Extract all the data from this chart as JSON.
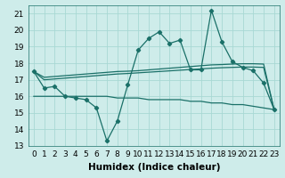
{
  "xlabel": "Humidex (Indice chaleur)",
  "bg_color": "#ceecea",
  "grid_color": "#a8d8d4",
  "line_color": "#1a7068",
  "xlim": [
    -0.5,
    23.5
  ],
  "ylim": [
    13,
    21.5
  ],
  "yticks": [
    13,
    14,
    15,
    16,
    17,
    18,
    19,
    20,
    21
  ],
  "xticks": [
    0,
    1,
    2,
    3,
    4,
    5,
    6,
    7,
    8,
    9,
    10,
    11,
    12,
    13,
    14,
    15,
    16,
    17,
    18,
    19,
    20,
    21,
    22,
    23
  ],
  "series1_x": [
    0,
    1,
    2,
    3,
    4,
    5,
    6,
    7,
    8,
    9,
    10,
    11,
    12,
    13,
    14,
    15,
    16,
    17,
    18,
    19,
    20,
    21,
    22,
    23
  ],
  "series1_y": [
    17.5,
    16.5,
    16.6,
    16.0,
    15.9,
    15.8,
    15.3,
    13.3,
    14.5,
    16.7,
    18.8,
    19.5,
    19.9,
    19.2,
    19.4,
    17.6,
    17.6,
    21.2,
    19.3,
    18.1,
    17.75,
    17.55,
    16.8,
    15.2
  ],
  "series2_x": [
    0,
    1,
    2,
    3,
    4,
    5,
    6,
    7,
    8,
    9,
    10,
    11,
    12,
    13,
    14,
    15,
    16,
    17,
    18,
    19,
    20,
    21,
    22,
    23
  ],
  "series2_y": [
    17.5,
    17.15,
    17.2,
    17.25,
    17.3,
    17.35,
    17.4,
    17.45,
    17.5,
    17.52,
    17.55,
    17.6,
    17.65,
    17.7,
    17.75,
    17.8,
    17.85,
    17.9,
    17.92,
    17.95,
    17.97,
    17.97,
    17.95,
    15.2
  ],
  "series3_x": [
    0,
    1,
    2,
    3,
    4,
    5,
    6,
    7,
    8,
    9,
    10,
    11,
    12,
    13,
    14,
    15,
    16,
    17,
    18,
    19,
    20,
    21,
    22,
    23
  ],
  "series3_y": [
    17.5,
    17.0,
    17.05,
    17.1,
    17.15,
    17.2,
    17.25,
    17.3,
    17.35,
    17.38,
    17.42,
    17.46,
    17.5,
    17.54,
    17.58,
    17.62,
    17.66,
    17.7,
    17.73,
    17.75,
    17.77,
    17.77,
    17.75,
    15.2
  ],
  "series4_x": [
    0,
    1,
    2,
    3,
    4,
    5,
    6,
    7,
    8,
    9,
    10,
    11,
    12,
    13,
    14,
    15,
    16,
    17,
    18,
    19,
    20,
    21,
    22,
    23
  ],
  "series4_y": [
    16.0,
    16.0,
    16.0,
    16.0,
    16.0,
    16.0,
    16.0,
    16.0,
    15.9,
    15.9,
    15.9,
    15.8,
    15.8,
    15.8,
    15.8,
    15.7,
    15.7,
    15.6,
    15.6,
    15.5,
    15.5,
    15.4,
    15.3,
    15.2
  ],
  "fontsize_tick": 6.5,
  "fontsize_label": 7.5
}
